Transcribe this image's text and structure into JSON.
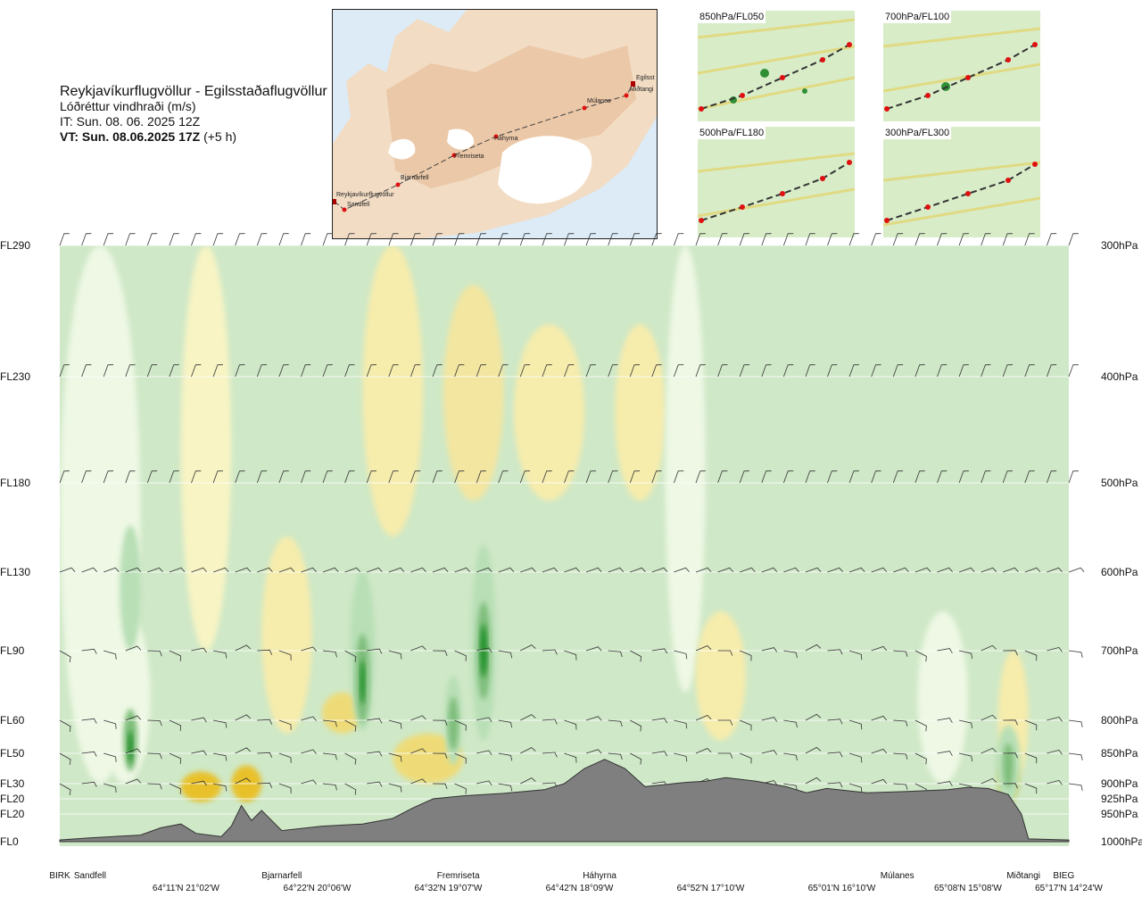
{
  "header": {
    "title": "Reykjavíkurflugvöllur - Egilsstaðaflugvöllur",
    "parameter": "Lóðréttur vindhraði (m/s)",
    "issue_time": "IT: Sun. 08. 06. 2025 12Z",
    "valid_time": "VT: Sun. 08.06.2025 17Z",
    "lead": "(+5 h)"
  },
  "map": {
    "waypoints": [
      "Reykjavíkurflugvöllur",
      "Sandfell",
      "Bjarnarfell",
      "Fremriseta",
      "Háhyrna",
      "Múlanes",
      "Egilsst",
      "Miðtangi"
    ]
  },
  "mini_maps": [
    {
      "label": "850hPa/FL050"
    },
    {
      "label": "700hPa/FL100"
    },
    {
      "label": "500hPa/FL180"
    },
    {
      "label": "300hPa/FL300"
    }
  ],
  "chart_data": {
    "type": "heatmap",
    "title": "Reykjavíkurflugvöllur - Egilsstaðaflugvöllur",
    "variable": "Lóðréttur vindhraði (m/s)",
    "levels": [
      {
        "fl": "FL290",
        "hpa": "300hPa",
        "pressure": 300
      },
      {
        "fl": "FL230",
        "hpa": "400hPa",
        "pressure": 400
      },
      {
        "fl": "FL180",
        "hpa": "500hPa",
        "pressure": 500
      },
      {
        "fl": "FL130",
        "hpa": "600hPa",
        "pressure": 600
      },
      {
        "fl": "FL90",
        "hpa": "700hPa",
        "pressure": 700
      },
      {
        "fl": "FL60",
        "hpa": "800hPa",
        "pressure": 800
      },
      {
        "fl": "FL50",
        "hpa": "850hPa",
        "pressure": 850
      },
      {
        "fl": "FL30",
        "hpa": "900hPa",
        "pressure": 900
      },
      {
        "fl": "FL20",
        "hpa": "925hPa",
        "pressure": 925
      },
      {
        "fl": "FL20",
        "hpa": "950hPa",
        "pressure": 950
      },
      {
        "fl": "FL0",
        "hpa": "1000hPa",
        "pressure": 1000
      }
    ],
    "stations": [
      {
        "name": "BIRK",
        "pos": 0.0
      },
      {
        "name": "Sandfell",
        "pos": 0.03
      },
      {
        "name": "Bjarnarfell",
        "pos": 0.22
      },
      {
        "name": "Fremriseta",
        "pos": 0.395
      },
      {
        "name": "Háhyrna",
        "pos": 0.535
      },
      {
        "name": "Múlanes",
        "pos": 0.83
      },
      {
        "name": "Miðtangi",
        "pos": 0.955
      },
      {
        "name": "BIEG",
        "pos": 0.995
      }
    ],
    "coords": [
      {
        "label": "64°11'N 21°02'W",
        "pos": 0.125
      },
      {
        "label": "64°22'N 20°06'W",
        "pos": 0.255
      },
      {
        "label": "64°32'N 19°07'W",
        "pos": 0.385
      },
      {
        "label": "64°42'N 18°09'W",
        "pos": 0.515
      },
      {
        "label": "64°52'N 17°10'W",
        "pos": 0.645
      },
      {
        "label": "65°01'N 16°10'W",
        "pos": 0.775
      },
      {
        "label": "65°08'N 15°08'W",
        "pos": 0.9
      },
      {
        "label": "65°17'N 14°24'W",
        "pos": 1.0
      }
    ],
    "terrain_pressure": [
      [
        0,
        997
      ],
      [
        0.03,
        993
      ],
      [
        0.08,
        988
      ],
      [
        0.1,
        975
      ],
      [
        0.12,
        968
      ],
      [
        0.135,
        985
      ],
      [
        0.16,
        991
      ],
      [
        0.17,
        972
      ],
      [
        0.18,
        936
      ],
      [
        0.19,
        962
      ],
      [
        0.2,
        944
      ],
      [
        0.22,
        980
      ],
      [
        0.26,
        972
      ],
      [
        0.3,
        968
      ],
      [
        0.33,
        958
      ],
      [
        0.35,
        940
      ],
      [
        0.37,
        925
      ],
      [
        0.4,
        920
      ],
      [
        0.44,
        916
      ],
      [
        0.48,
        910
      ],
      [
        0.5,
        900
      ],
      [
        0.52,
        875
      ],
      [
        0.54,
        860
      ],
      [
        0.56,
        875
      ],
      [
        0.58,
        905
      ],
      [
        0.62,
        898
      ],
      [
        0.64,
        896
      ],
      [
        0.66,
        890
      ],
      [
        0.69,
        896
      ],
      [
        0.72,
        905
      ],
      [
        0.74,
        915
      ],
      [
        0.76,
        908
      ],
      [
        0.8,
        915
      ],
      [
        0.84,
        913
      ],
      [
        0.88,
        910
      ],
      [
        0.9,
        906
      ],
      [
        0.92,
        908
      ],
      [
        0.94,
        918
      ],
      [
        0.953,
        950
      ],
      [
        0.96,
        995
      ],
      [
        1,
        997
      ]
    ],
    "contour_levels_ms": [
      -2,
      -1,
      -0.5,
      -0.2,
      0.2,
      0.5,
      1,
      2
    ],
    "colors": {
      "strong_up": "#1f8f27",
      "up": "#b8dfb6",
      "weak_up": "#d6ecd0",
      "neutral": "#eef8e4",
      "weak_down": "#f6f0b2",
      "down": "#eedb78",
      "strong_down": "#e8c12a",
      "terrain": "#7f7f7f"
    }
  }
}
